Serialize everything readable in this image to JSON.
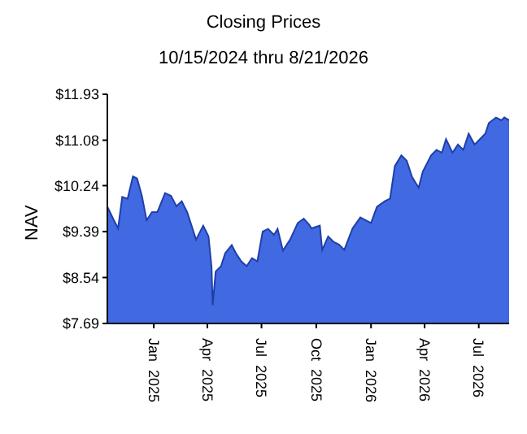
{
  "chart_data": {
    "type": "area",
    "title": "Closing Prices",
    "subtitle": "10/15/2024 thru 8/21/2026",
    "ylabel": "NAV",
    "xlim": [
      "2024-10-15",
      "2026-08-21"
    ],
    "xticks": [
      {
        "value": "2025-01-01",
        "label": "Jan  2025"
      },
      {
        "value": "2025-04-01",
        "label": "Apr  2025"
      },
      {
        "value": "2025-07-01",
        "label": "Jul  2025"
      },
      {
        "value": "2025-10-01",
        "label": "Oct  2025"
      },
      {
        "value": "2026-01-01",
        "label": "Jan  2026"
      },
      {
        "value": "2026-04-01",
        "label": "Apr  2026"
      },
      {
        "value": "2026-07-01",
        "label": "Jul  2026"
      }
    ],
    "ylim": [
      7.69,
      11.93
    ],
    "yticks": [
      {
        "value": 7.69,
        "label": "$7.69"
      },
      {
        "value": 8.54,
        "label": "$8.54"
      },
      {
        "value": 9.39,
        "label": "$9.39"
      },
      {
        "value": 10.24,
        "label": "$10.24"
      },
      {
        "value": 11.08,
        "label": "$11.08"
      },
      {
        "value": 11.93,
        "label": "$11.93"
      }
    ],
    "grid": false,
    "legend": false,
    "x": [
      "2024-10-15",
      "2024-10-26",
      "2024-11-02",
      "2024-11-09",
      "2024-11-18",
      "2024-11-27",
      "2024-12-04",
      "2024-12-12",
      "2024-12-20",
      "2024-12-29",
      "2025-01-07",
      "2025-01-20",
      "2025-01-30",
      "2025-02-08",
      "2025-02-17",
      "2025-02-26",
      "2025-03-07",
      "2025-03-13",
      "2025-03-25",
      "2025-04-03",
      "2025-04-08",
      "2025-04-10",
      "2025-04-15",
      "2025-04-24",
      "2025-05-01",
      "2025-05-12",
      "2025-05-19",
      "2025-05-28",
      "2025-06-06",
      "2025-06-15",
      "2025-06-24",
      "2025-07-03",
      "2025-07-12",
      "2025-07-22",
      "2025-07-28",
      "2025-08-06",
      "2025-08-18",
      "2025-08-31",
      "2025-09-10",
      "2025-09-19",
      "2025-09-23",
      "2025-10-07",
      "2025-10-11",
      "2025-10-21",
      "2025-10-30",
      "2025-11-08",
      "2025-11-17",
      "2025-12-01",
      "2025-12-14",
      "2026-01-01",
      "2026-01-11",
      "2026-01-24",
      "2026-02-02",
      "2026-02-10",
      "2026-02-21",
      "2026-03-02",
      "2026-03-11",
      "2026-03-22",
      "2026-03-29",
      "2026-04-12",
      "2026-04-21",
      "2026-04-30",
      "2026-05-07",
      "2026-05-18",
      "2026-05-27",
      "2026-06-05",
      "2026-06-14",
      "2026-06-24",
      "2026-07-03",
      "2026-07-12",
      "2026-07-18",
      "2026-07-30",
      "2026-08-08",
      "2026-08-13",
      "2026-08-21"
    ],
    "series": [
      {
        "color": "#4169e1",
        "values": [
          9.85,
          9.6,
          9.45,
          10.03,
          10.0,
          10.41,
          10.37,
          10.05,
          9.6,
          9.75,
          9.75,
          10.1,
          10.05,
          9.86,
          9.95,
          9.75,
          9.45,
          9.24,
          9.5,
          9.3,
          8.74,
          8.03,
          8.65,
          8.75,
          8.99,
          9.14,
          8.99,
          8.84,
          8.75,
          8.9,
          8.84,
          9.39,
          9.44,
          9.33,
          9.44,
          9.04,
          9.24,
          9.55,
          9.63,
          9.52,
          9.45,
          9.5,
          9.05,
          9.3,
          9.2,
          9.15,
          9.05,
          9.45,
          9.65,
          9.55,
          9.85,
          9.95,
          10.0,
          10.6,
          10.8,
          10.7,
          10.4,
          10.2,
          10.5,
          10.8,
          10.9,
          10.85,
          11.1,
          10.85,
          11.0,
          10.9,
          11.2,
          11.0,
          11.1,
          11.2,
          11.4,
          11.5,
          11.45,
          11.5,
          11.45
        ]
      }
    ]
  }
}
